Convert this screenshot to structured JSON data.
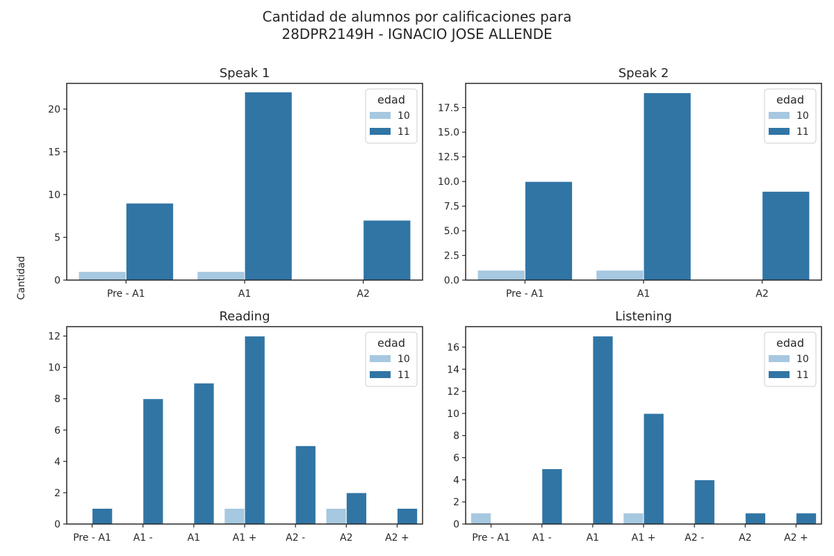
{
  "figure": {
    "title_line1": "Cantidad de alumnos por calificaciones para",
    "title_line2": "28DPR2149H - IGNACIO JOSE ALLENDE",
    "ylabel": "Cantidad"
  },
  "colors": {
    "10": "#a6c8e0",
    "11": "#3175a5",
    "axis": "#262626"
  },
  "chart_data": [
    {
      "type": "bar",
      "title": "Speak 1",
      "categories": [
        "Pre - A1",
        "A1",
        "A2"
      ],
      "series": [
        {
          "name": "10",
          "values": [
            1,
            1,
            0
          ]
        },
        {
          "name": "11",
          "values": [
            9,
            22,
            7
          ]
        }
      ],
      "ylim": [
        0,
        23
      ],
      "yticks": [
        "0",
        "5",
        "10",
        "15",
        "20"
      ],
      "ytick_values": [
        0,
        5,
        10,
        15,
        20
      ],
      "legend": {
        "title": "edad",
        "position": "upper right"
      },
      "grid": false
    },
    {
      "type": "bar",
      "title": "Speak 2",
      "categories": [
        "Pre - A1",
        "A1",
        "A2"
      ],
      "series": [
        {
          "name": "10",
          "values": [
            1,
            1,
            0
          ]
        },
        {
          "name": "11",
          "values": [
            10,
            19,
            9
          ]
        }
      ],
      "ylim": [
        0,
        19.95
      ],
      "yticks": [
        "0.0",
        "2.5",
        "5.0",
        "7.5",
        "10.0",
        "12.5",
        "15.0",
        "17.5"
      ],
      "ytick_values": [
        0,
        2.5,
        5,
        7.5,
        10,
        12.5,
        15,
        17.5
      ],
      "legend": {
        "title": "edad",
        "position": "upper right"
      },
      "grid": false
    },
    {
      "type": "bar",
      "title": "Reading",
      "categories": [
        "Pre - A1",
        "A1 -",
        "A1",
        "A1 +",
        "A2 -",
        "A2",
        "A2 +"
      ],
      "series": [
        {
          "name": "10",
          "values": [
            0,
            0,
            0,
            1,
            0,
            1,
            0
          ]
        },
        {
          "name": "11",
          "values": [
            1,
            8,
            9,
            12,
            5,
            2,
            1
          ]
        }
      ],
      "ylim": [
        0,
        12.6
      ],
      "yticks": [
        "0",
        "2",
        "4",
        "6",
        "8",
        "10",
        "12"
      ],
      "ytick_values": [
        0,
        2,
        4,
        6,
        8,
        10,
        12
      ],
      "legend": {
        "title": "edad",
        "position": "upper right"
      },
      "grid": false
    },
    {
      "type": "bar",
      "title": "Listening",
      "categories": [
        "Pre - A1",
        "A1 -",
        "A1",
        "A1 +",
        "A2 -",
        "A2",
        "A2 +"
      ],
      "series": [
        {
          "name": "10",
          "values": [
            1,
            0,
            0,
            1,
            0,
            0,
            0
          ]
        },
        {
          "name": "11",
          "values": [
            0,
            5,
            17,
            10,
            4,
            1,
            1
          ]
        }
      ],
      "ylim": [
        0,
        17.85
      ],
      "yticks": [
        "0",
        "2",
        "4",
        "6",
        "8",
        "10",
        "12",
        "14",
        "16"
      ],
      "ytick_values": [
        0,
        2,
        4,
        6,
        8,
        10,
        12,
        14,
        16
      ],
      "legend": {
        "title": "edad",
        "position": "upper right"
      },
      "grid": false
    }
  ]
}
